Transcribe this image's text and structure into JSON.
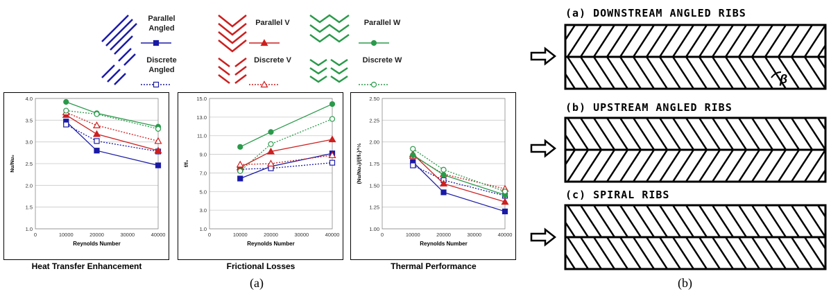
{
  "legend": {
    "items": [
      {
        "label": "Parallel\nAngled",
        "color": "#1a1aa6",
        "marker": "square",
        "filled": true,
        "dash": false
      },
      {
        "label": "Discrete\nAngled",
        "color": "#1a1aa6",
        "marker": "square",
        "filled": false,
        "dash": true
      },
      {
        "label": "Parallel V",
        "color": "#cc1f1f",
        "marker": "triangle",
        "filled": true,
        "dash": false
      },
      {
        "label": "Discrete V",
        "color": "#cc1f1f",
        "marker": "triangle",
        "filled": false,
        "dash": true
      },
      {
        "label": "Parallel W",
        "color": "#2a9a4a",
        "marker": "circle",
        "filled": true,
        "dash": false
      },
      {
        "label": "Discrete W",
        "color": "#2a9a4a",
        "marker": "circle",
        "filled": false,
        "dash": true
      }
    ]
  },
  "captions": {
    "a": "(a)",
    "b": "(b)"
  },
  "ducts": {
    "titles": [
      "(a) DOWNSTREAM ANGLED RIBS",
      "(b) UPSTREAM ANGLED RIBS",
      "(c) SPIRAL RIBS"
    ],
    "beta": "β"
  },
  "chart_data": [
    {
      "type": "line",
      "title": "Heat Transfer Enhancement",
      "xlabel": "Reynolds Number",
      "ylabel": "Nu/Nu₀",
      "xlim": [
        0,
        40000
      ],
      "ylim": [
        1.0,
        4.0
      ],
      "xticks": [
        0,
        10000,
        20000,
        30000,
        40000
      ],
      "yticks": [
        1.0,
        1.5,
        2.0,
        2.5,
        3.0,
        3.5,
        4.0
      ],
      "ytick_labels": [
        "1.0",
        "1.5",
        "2.0",
        "2.5",
        "3.0",
        "3.5",
        "4.0"
      ],
      "x": [
        10000,
        20000,
        40000
      ],
      "series": [
        {
          "name": "Parallel Angled",
          "values": [
            3.47,
            2.8,
            2.46
          ]
        },
        {
          "name": "Discrete Angled",
          "values": [
            3.4,
            3.02,
            2.78
          ]
        },
        {
          "name": "Parallel V",
          "values": [
            3.62,
            3.18,
            2.8
          ]
        },
        {
          "name": "Discrete V",
          "values": [
            3.68,
            3.38,
            3.02
          ]
        },
        {
          "name": "Parallel W",
          "values": [
            3.92,
            3.66,
            3.35
          ]
        },
        {
          "name": "Discrete W",
          "values": [
            3.72,
            3.64,
            3.3
          ]
        }
      ]
    },
    {
      "type": "line",
      "title": "Frictional Losses",
      "xlabel": "Reynolds Number",
      "ylabel": "f/f₀",
      "xlim": [
        0,
        40000
      ],
      "ylim": [
        1.0,
        15.0
      ],
      "xticks": [
        0,
        10000,
        20000,
        30000,
        40000
      ],
      "yticks": [
        1.0,
        3.0,
        5.0,
        7.0,
        9.0,
        11.0,
        13.0,
        15.0
      ],
      "ytick_labels": [
        "1.0",
        "3.0",
        "5.0",
        "7.0",
        "9.0",
        "11.0",
        "13.0",
        "15.0"
      ],
      "x": [
        10000,
        20000,
        40000
      ],
      "series": [
        {
          "name": "Parallel Angled",
          "values": [
            6.4,
            7.7,
            9.1
          ]
        },
        {
          "name": "Discrete Angled",
          "values": [
            7.4,
            7.5,
            8.1
          ]
        },
        {
          "name": "Parallel V",
          "values": [
            7.6,
            9.3,
            10.6
          ]
        },
        {
          "name": "Discrete V",
          "values": [
            7.9,
            8.0,
            8.9
          ]
        },
        {
          "name": "Parallel W",
          "values": [
            9.8,
            11.4,
            14.4
          ]
        },
        {
          "name": "Discrete W",
          "values": [
            7.2,
            10.1,
            12.8
          ]
        }
      ]
    },
    {
      "type": "line",
      "title": "Thermal Performance",
      "xlabel": "Reynolds Number",
      "ylabel": "(Nu/Nu₀)/(f/f₀)^⅓",
      "xlim": [
        0,
        40000
      ],
      "ylim": [
        1.0,
        2.5
      ],
      "xticks": [
        0,
        10000,
        20000,
        30000,
        40000
      ],
      "yticks": [
        1.0,
        1.25,
        1.5,
        1.75,
        2.0,
        2.25,
        2.5
      ],
      "ytick_labels": [
        "1.00",
        "1.25",
        "1.50",
        "1.75",
        "2.00",
        "2.25",
        "2.50"
      ],
      "x": [
        10000,
        20000,
        40000
      ],
      "series": [
        {
          "name": "Parallel Angled",
          "values": [
            1.77,
            1.42,
            1.2
          ]
        },
        {
          "name": "Discrete Angled",
          "values": [
            1.73,
            1.56,
            1.38
          ]
        },
        {
          "name": "Parallel V",
          "values": [
            1.86,
            1.52,
            1.31
          ]
        },
        {
          "name": "Discrete V",
          "values": [
            1.84,
            1.63,
            1.46
          ]
        },
        {
          "name": "Parallel W",
          "values": [
            1.85,
            1.62,
            1.39
          ]
        },
        {
          "name": "Discrete W",
          "values": [
            1.92,
            1.68,
            1.43
          ]
        }
      ]
    }
  ]
}
